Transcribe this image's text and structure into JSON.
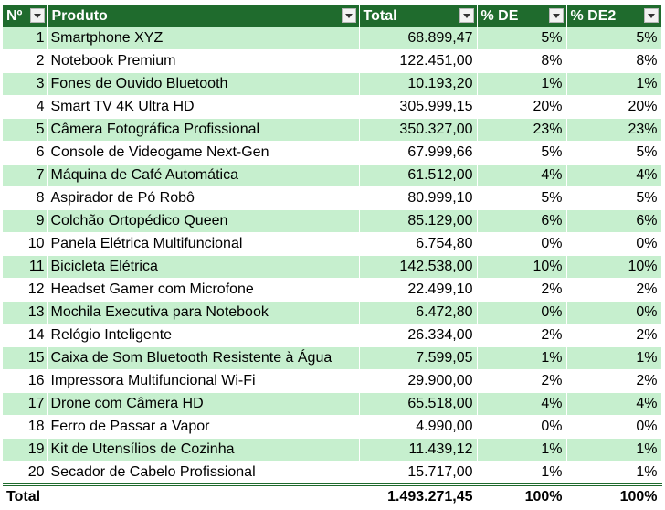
{
  "header": {
    "num": "Nº",
    "produto": "Produto",
    "total": "Total",
    "de": "% DE",
    "de2": "% DE2"
  },
  "rows": [
    {
      "n": "1",
      "produto": "Smartphone XYZ",
      "total": "68.899,47",
      "de": "5%",
      "de2": "5%"
    },
    {
      "n": "2",
      "produto": "Notebook Premium",
      "total": "122.451,00",
      "de": "8%",
      "de2": "8%"
    },
    {
      "n": "3",
      "produto": "Fones de Ouvido Bluetooth",
      "total": "10.193,20",
      "de": "1%",
      "de2": "1%"
    },
    {
      "n": "4",
      "produto": "Smart TV 4K Ultra HD",
      "total": "305.999,15",
      "de": "20%",
      "de2": "20%"
    },
    {
      "n": "5",
      "produto": "Câmera Fotográfica Profissional",
      "total": "350.327,00",
      "de": "23%",
      "de2": "23%"
    },
    {
      "n": "6",
      "produto": "Console de Videogame Next-Gen",
      "total": "67.999,66",
      "de": "5%",
      "de2": "5%"
    },
    {
      "n": "7",
      "produto": "Máquina de Café Automática",
      "total": "61.512,00",
      "de": "4%",
      "de2": "4%"
    },
    {
      "n": "8",
      "produto": "Aspirador de Pó Robô",
      "total": "80.999,10",
      "de": "5%",
      "de2": "5%"
    },
    {
      "n": "9",
      "produto": "Colchão Ortopédico Queen",
      "total": "85.129,00",
      "de": "6%",
      "de2": "6%"
    },
    {
      "n": "10",
      "produto": "Panela Elétrica Multifuncional",
      "total": "6.754,80",
      "de": "0%",
      "de2": "0%"
    },
    {
      "n": "11",
      "produto": "Bicicleta Elétrica",
      "total": "142.538,00",
      "de": "10%",
      "de2": "10%"
    },
    {
      "n": "12",
      "produto": "Headset Gamer com Microfone",
      "total": "22.499,10",
      "de": "2%",
      "de2": "2%"
    },
    {
      "n": "13",
      "produto": "Mochila Executiva para Notebook",
      "total": "6.472,80",
      "de": "0%",
      "de2": "0%"
    },
    {
      "n": "14",
      "produto": "Relógio Inteligente",
      "total": "26.334,00",
      "de": "2%",
      "de2": "2%"
    },
    {
      "n": "15",
      "produto": "Caixa de Som Bluetooth Resistente à Água",
      "total": "7.599,05",
      "de": "1%",
      "de2": "1%"
    },
    {
      "n": "16",
      "produto": "Impressora Multifuncional Wi-Fi",
      "total": "29.900,00",
      "de": "2%",
      "de2": "2%"
    },
    {
      "n": "17",
      "produto": "Drone com Câmera HD",
      "total": "65.518,00",
      "de": "4%",
      "de2": "4%"
    },
    {
      "n": "18",
      "produto": "Ferro de Passar a Vapor",
      "total": "4.990,00",
      "de": "0%",
      "de2": "0%"
    },
    {
      "n": "19",
      "produto": "Kit de Utensílios de Cozinha",
      "total": "11.439,12",
      "de": "1%",
      "de2": "1%"
    },
    {
      "n": "20",
      "produto": "Secador de Cabelo Profissional",
      "total": "15.717,00",
      "de": "1%",
      "de2": "1%"
    }
  ],
  "footer": {
    "label": "Total",
    "total": "1.493.271,45",
    "de": "100%",
    "de2": "100%"
  },
  "colors": {
    "header_bg": "#1f6b2d",
    "band_green": "#c6efce",
    "band_white": "#ffffff"
  },
  "icons": {
    "filter": "dropdown-arrow-icon"
  }
}
